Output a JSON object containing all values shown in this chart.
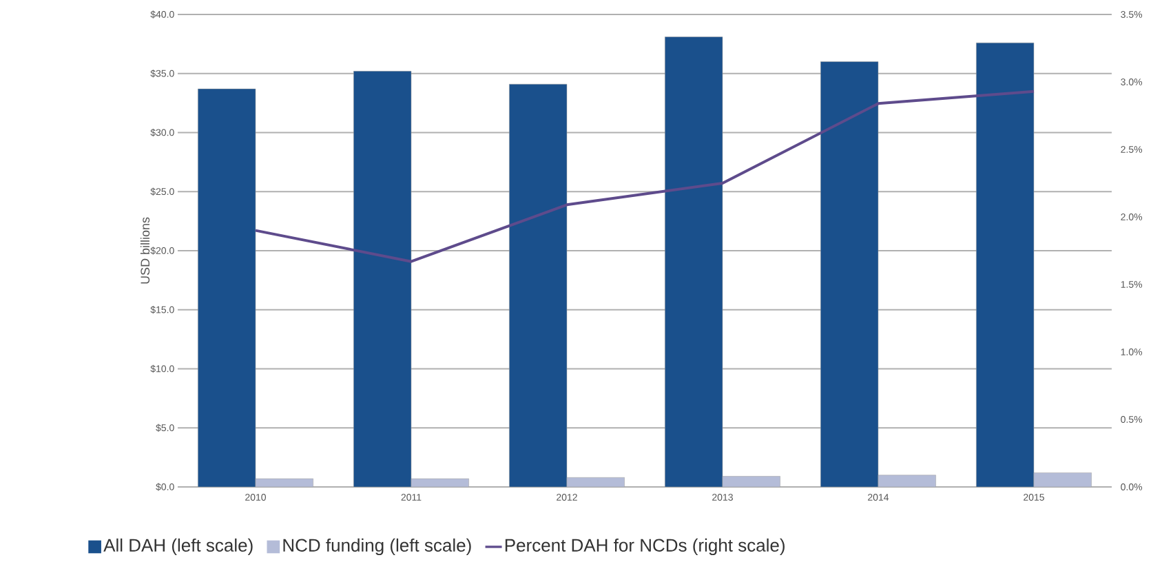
{
  "chart_data": {
    "type": "bar",
    "ylabel": "USD billions",
    "categories": [
      "2010",
      "2011",
      "2012",
      "2013",
      "2014",
      "2015"
    ],
    "series": [
      {
        "name": "All DAH (left scale)",
        "color": "#1a508c",
        "values": [
          33.7,
          35.2,
          34.1,
          38.1,
          36.0,
          37.6
        ]
      },
      {
        "name": "NCD funding (left scale)",
        "color": "#b4bcd8",
        "values": [
          0.7,
          0.7,
          0.8,
          0.9,
          1.0,
          1.2
        ]
      },
      {
        "name": "Percent DAH for NCDs (right scale)",
        "type": "line",
        "axis": "y2",
        "color": "#5e4b8c",
        "values": [
          1.9,
          1.67,
          2.09,
          2.25,
          2.84,
          2.93
        ]
      }
    ],
    "ylim": [
      0,
      40
    ],
    "yticks": [
      {
        "value": 0,
        "label": "$0.0"
      },
      {
        "value": 5,
        "label": "$5.0"
      },
      {
        "value": 10,
        "label": "$10.0"
      },
      {
        "value": 15,
        "label": "$15.0"
      },
      {
        "value": 20,
        "label": "$20.0"
      },
      {
        "value": 25,
        "label": "$25.0"
      },
      {
        "value": 30,
        "label": "$30.0"
      },
      {
        "value": 35,
        "label": "$35.0"
      },
      {
        "value": 40,
        "label": "$40.0"
      }
    ],
    "y2lim": [
      0,
      3.5
    ],
    "y2ticks": [
      {
        "value": 0,
        "label": "0.0%"
      },
      {
        "value": 0.5,
        "label": "0.5%"
      },
      {
        "value": 1,
        "label": "1.0%"
      },
      {
        "value": 1.5,
        "label": "1.5%"
      },
      {
        "value": 2,
        "label": "2.0%"
      },
      {
        "value": 2.5,
        "label": "2.5%"
      },
      {
        "value": 3,
        "label": "3.0%"
      },
      {
        "value": 3.5,
        "label": "3.5%"
      }
    ],
    "grid": "y",
    "legend": "bottom"
  }
}
